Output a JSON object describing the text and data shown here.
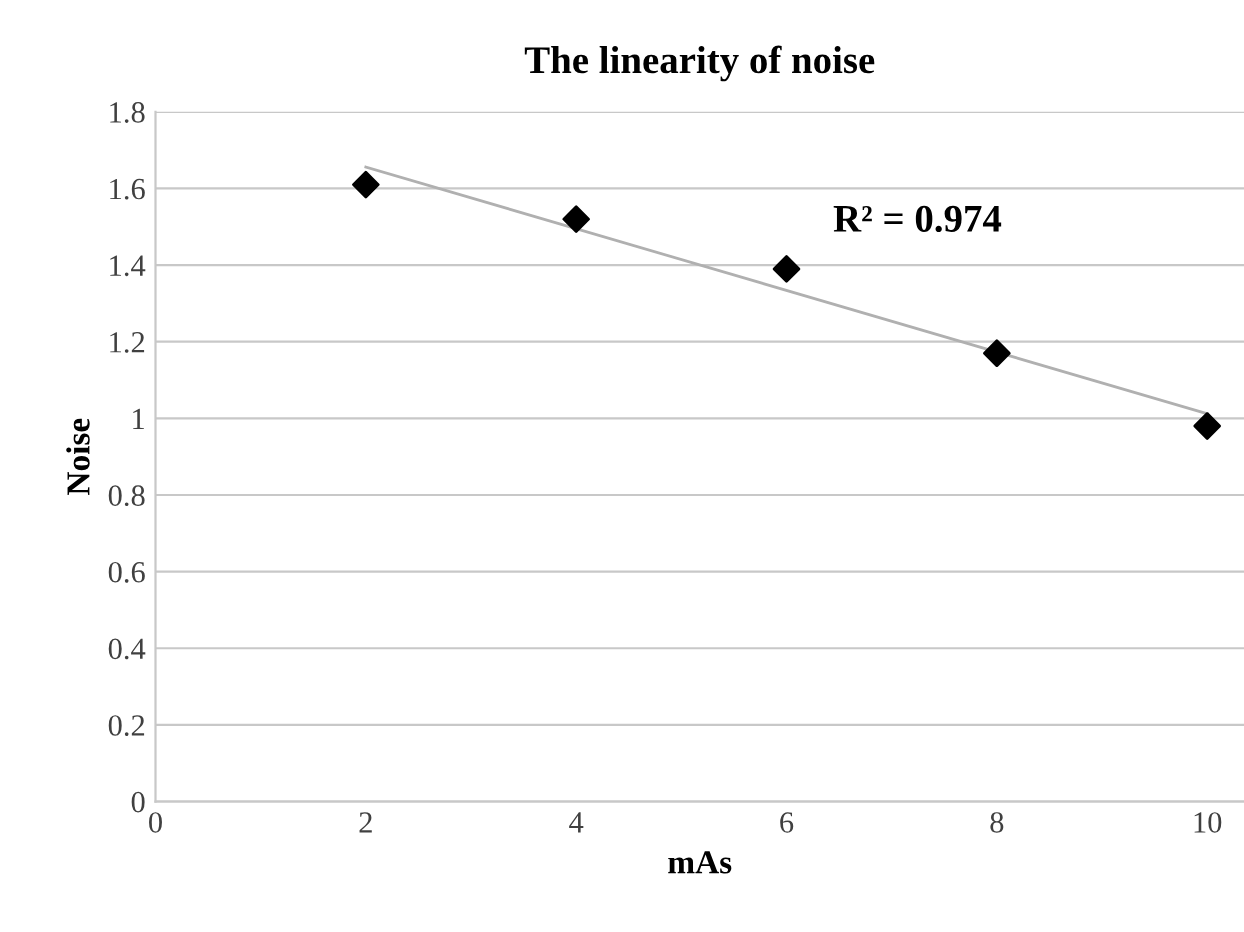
{
  "chart_data": {
    "type": "scatter",
    "title": "The linearity of noise",
    "xlabel": "mAs",
    "ylabel": "Noise",
    "series": [
      {
        "color": "#000000",
        "marker": "diamond",
        "x": [
          2,
          4,
          6,
          8,
          10
        ],
        "values": [
          1.61,
          1.52,
          1.39,
          1.17,
          0.98
        ]
      },
      {
        "type": "line",
        "color": "#b0b0b0",
        "marker": "none",
        "line_style": "solid",
        "x": [
          2,
          10
        ],
        "values": [
          1.656,
          1.012
        ]
      }
    ],
    "annotations": [
      "R² = 0.974"
    ],
    "xlim": [
      0,
      10.35
    ],
    "xticks": [
      0,
      2,
      4,
      6,
      8,
      10
    ],
    "ylim": [
      0,
      1.8
    ],
    "yticks": [
      0,
      0.2,
      0.4,
      0.6,
      0.8,
      1,
      1.2,
      1.4,
      1.6,
      1.8
    ],
    "grid": "y",
    "legend": false
  }
}
